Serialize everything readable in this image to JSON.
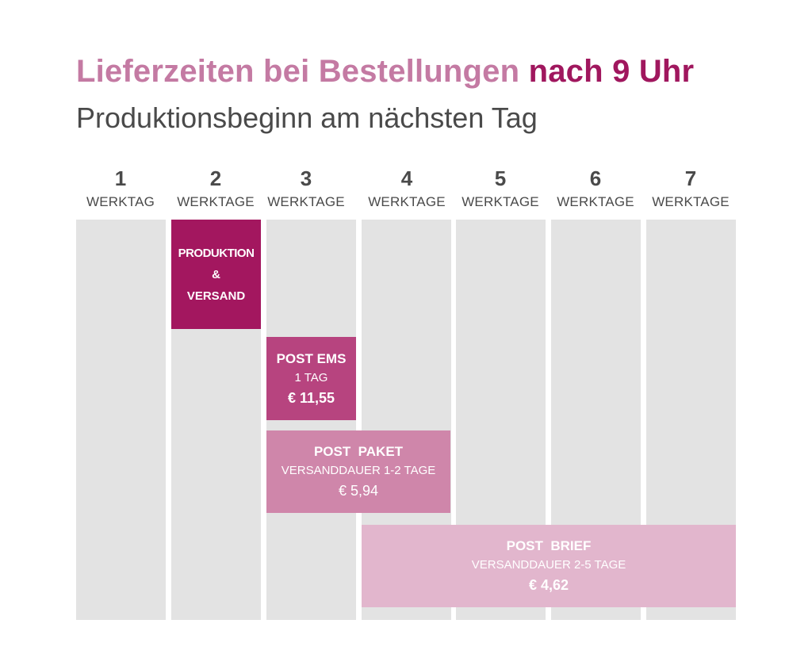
{
  "header": {
    "title_main": "Lieferzeiten bei Bestellungen",
    "title_highlight": "nach 9 Uhr",
    "subtitle": "Produktionsbeginn am nächsten Tag"
  },
  "days": [
    {
      "num": "1",
      "label": "WERKTAG"
    },
    {
      "num": "2",
      "label": "WERKTAGE"
    },
    {
      "num": "3",
      "label": "WERKTAGE"
    },
    {
      "num": "4",
      "label": "WERKTAGE"
    },
    {
      "num": "5",
      "label": "WERKTAGE"
    },
    {
      "num": "6",
      "label": "WERKTAGE"
    },
    {
      "num": "7",
      "label": "WERKTAGE"
    }
  ],
  "blocks": {
    "production": {
      "line1": "PRODUKTION",
      "line2": "&",
      "line3": "VERSAND",
      "start_day": 2,
      "end_day": 2
    },
    "post_ems": {
      "title": "POST EMS",
      "duration": "1 TAG",
      "price": "€ 11,55",
      "start_day": 3,
      "end_day": 3
    },
    "post_paket": {
      "title": "POST  PAKET",
      "duration": "VERSANDDAUER 1-2 TAGE",
      "price": "€ 5,94",
      "start_day": 3,
      "end_day": 4
    },
    "post_brief": {
      "title": "POST  BRIEF",
      "duration": "VERSANDDAUER 2-5 TAGE",
      "price": "€ 4,62",
      "start_day": 4,
      "end_day": 7
    }
  },
  "colors": {
    "title_light": "#c47aa3",
    "title_dark": "#a0175e",
    "column_bg": "#e3e3e3",
    "production": "#a3175f",
    "post_ems": "#b7447f",
    "post_paket": "#cf86aa",
    "post_brief": "#e2b6cd"
  }
}
